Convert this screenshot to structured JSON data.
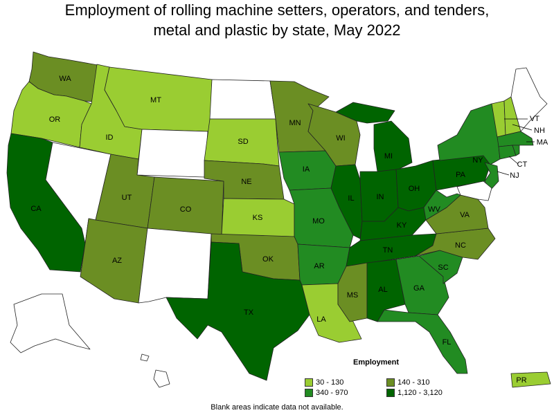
{
  "title_line1": "Employment of rolling machine setters, operators, and tenders,",
  "title_line2": "metal and plastic by state, May 2022",
  "legend": {
    "title": "Employment",
    "items": [
      {
        "label": "30 - 130",
        "color": "#9acd32"
      },
      {
        "label": "140 - 310",
        "color": "#6b8e23"
      },
      {
        "label": "340 - 970",
        "color": "#228b22"
      },
      {
        "label": "1,120 - 3,120",
        "color": "#006400"
      }
    ]
  },
  "note": "Blank areas indicate data not available.",
  "states": {
    "WA": "WA",
    "OR": "OR",
    "CA": "CA",
    "ID": "ID",
    "NV": "",
    "MT": "MT",
    "WY": "",
    "UT": "UT",
    "AZ": "AZ",
    "CO": "CO",
    "NM": "",
    "ND": "",
    "SD": "SD",
    "NE": "NE",
    "KS": "KS",
    "OK": "OK",
    "TX": "TX",
    "MN": "MN",
    "IA": "IA",
    "MO": "MO",
    "AR": "AR",
    "LA": "LA",
    "WI": "WI",
    "IL": "IL",
    "MS": "MS",
    "MI": "MI",
    "IN": "IN",
    "KY": "KY",
    "TN": "TN",
    "AL": "AL",
    "OH": "OH",
    "GA": "GA",
    "FL": "FL",
    "SC": "SC",
    "NC": "NC",
    "VA": "VA",
    "WV": "WV",
    "PA": "PA",
    "NY": "NY",
    "VT": "VT",
    "NH": "NH",
    "MA": "MA",
    "CT": "CT",
    "NJ": "NJ",
    "PR": "PR"
  }
}
